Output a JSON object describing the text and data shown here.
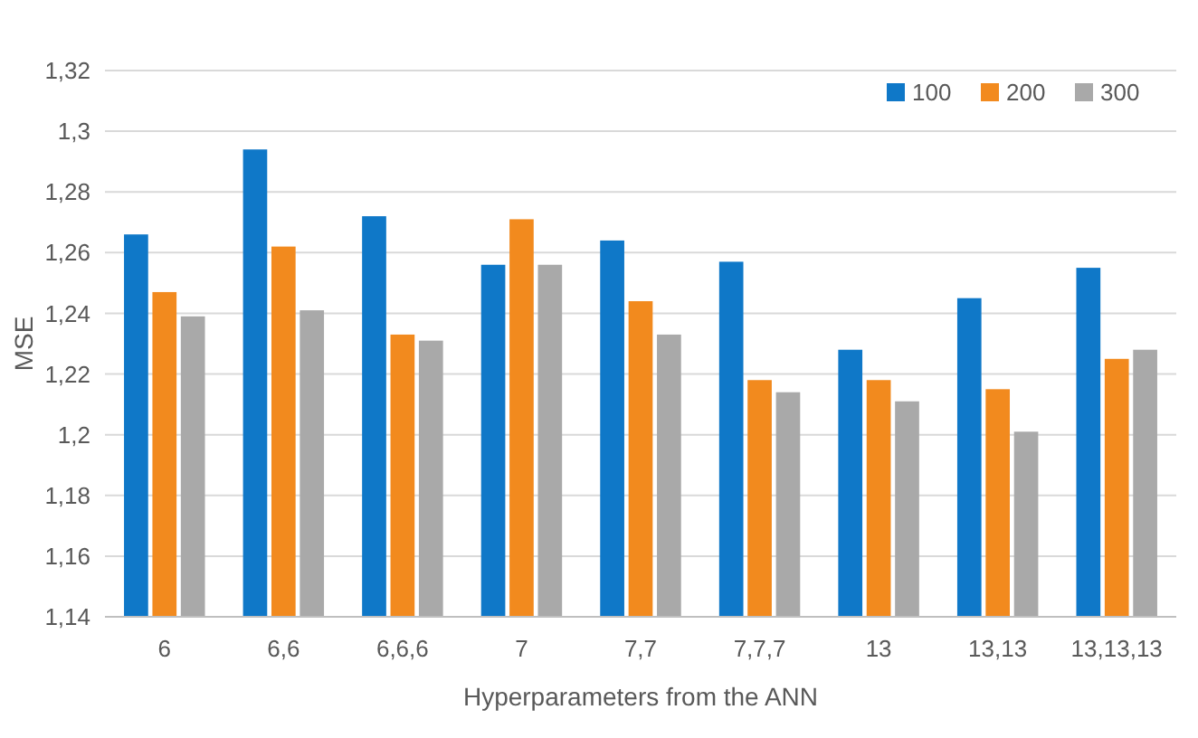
{
  "chart_data": {
    "type": "bar",
    "xlabel": "Hyperparameters from the ANN",
    "ylabel": "MSE",
    "categories": [
      "6",
      "6,6",
      "6,6,6",
      "7",
      "7,7",
      "7,7,7",
      "13",
      "13,13",
      "13,13,13"
    ],
    "series": [
      {
        "name": "100",
        "color": "#0f78c8",
        "values": [
          1.266,
          1.294,
          1.272,
          1.256,
          1.264,
          1.257,
          1.228,
          1.245,
          1.255
        ]
      },
      {
        "name": "200",
        "color": "#f28a1e",
        "values": [
          1.247,
          1.262,
          1.233,
          1.271,
          1.244,
          1.218,
          1.218,
          1.215,
          1.225
        ]
      },
      {
        "name": "300",
        "color": "#a9a9a9",
        "values": [
          1.239,
          1.241,
          1.231,
          1.256,
          1.233,
          1.214,
          1.211,
          1.201,
          1.228
        ]
      }
    ],
    "ylim": [
      1.14,
      1.32
    ],
    "yticks": [
      {
        "value": 1.14,
        "label": "1,14"
      },
      {
        "value": 1.16,
        "label": "1,16"
      },
      {
        "value": 1.18,
        "label": "1,18"
      },
      {
        "value": 1.2,
        "label": "1,2"
      },
      {
        "value": 1.22,
        "label": "1,22"
      },
      {
        "value": 1.24,
        "label": "1,24"
      },
      {
        "value": 1.26,
        "label": "1,26"
      },
      {
        "value": 1.28,
        "label": "1,28"
      },
      {
        "value": 1.3,
        "label": "1,3"
      },
      {
        "value": 1.32,
        "label": "1,32"
      }
    ],
    "grid": "y",
    "legend": "top right"
  }
}
